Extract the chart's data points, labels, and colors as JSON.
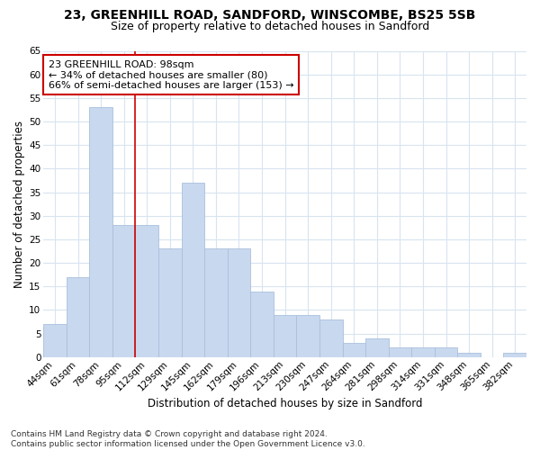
{
  "title1": "23, GREENHILL ROAD, SANDFORD, WINSCOMBE, BS25 5SB",
  "title2": "Size of property relative to detached houses in Sandford",
  "xlabel": "Distribution of detached houses by size in Sandford",
  "ylabel": "Number of detached properties",
  "bar_labels": [
    "44sqm",
    "61sqm",
    "78sqm",
    "95sqm",
    "112sqm",
    "129sqm",
    "145sqm",
    "162sqm",
    "179sqm",
    "196sqm",
    "213sqm",
    "230sqm",
    "247sqm",
    "264sqm",
    "281sqm",
    "298sqm",
    "314sqm",
    "331sqm",
    "348sqm",
    "365sqm",
    "382sqm"
  ],
  "bar_values": [
    7,
    17,
    53,
    28,
    28,
    23,
    37,
    23,
    23,
    14,
    9,
    9,
    8,
    3,
    4,
    2,
    2,
    2,
    1,
    0,
    1
  ],
  "bar_color": "#c8d8ee",
  "bar_edge_color": "#aac0dc",
  "vline_x": 3.5,
  "vline_color": "#cc0000",
  "annot_line1": "23 GREENHILL ROAD: 98sqm",
  "annot_line2": "← 34% of detached houses are smaller (80)",
  "annot_line3": "66% of semi-detached houses are larger (153) →",
  "annotation_box_color": "#ffffff",
  "annotation_box_edge": "#cc0000",
  "ylim_max": 65,
  "yticks": [
    0,
    5,
    10,
    15,
    20,
    25,
    30,
    35,
    40,
    45,
    50,
    55,
    60,
    65
  ],
  "footer": "Contains HM Land Registry data © Crown copyright and database right 2024.\nContains public sector information licensed under the Open Government Licence v3.0.",
  "bg_color": "#ffffff",
  "plot_bg_color": "#ffffff",
  "grid_color": "#d8e4f0",
  "title_fontsize": 10,
  "subtitle_fontsize": 9,
  "axis_label_fontsize": 8.5,
  "tick_fontsize": 7.5,
  "annot_fontsize": 8,
  "footer_fontsize": 6.5
}
